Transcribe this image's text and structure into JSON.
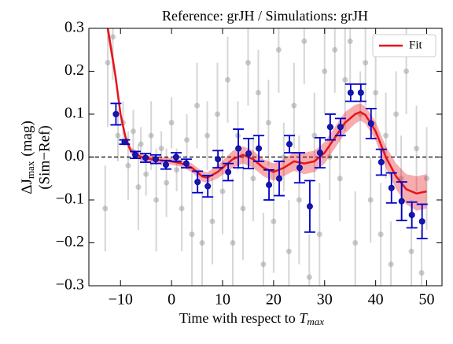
{
  "chart_data": {
    "type": "scatter",
    "title": "Reference: grJH / Simulations: grJH",
    "xlabel": {
      "text": "Time with respect to",
      "symbol": "T",
      "sub": "max"
    },
    "ylabel": {
      "symbol": "ΔJ",
      "sub": "max",
      "unit": "(mag)",
      "line2": "(Sim−Ref)"
    },
    "xlim": [
      -16.2,
      53
    ],
    "ylim": [
      -0.3,
      0.3
    ],
    "xticks": [
      {
        "value": -10,
        "label": "−10"
      },
      0,
      10,
      20,
      30,
      40,
      50
    ],
    "yticks": [
      {
        "value": -0.3,
        "label": "−0.3"
      },
      {
        "value": -0.2,
        "label": "−0.2"
      },
      {
        "value": -0.1,
        "label": "−0.1"
      },
      {
        "value": 0,
        "label": "0.0"
      },
      0.1,
      0.2,
      0.3
    ],
    "hline": 0,
    "legend": "upper right",
    "background": {
      "color": "#999999",
      "x": [
        -13,
        -12.5,
        -11.5,
        -10.5,
        -9.5,
        -8.5,
        -7.5,
        -6.5,
        -6,
        -5,
        -4,
        -3,
        -2,
        -1,
        0,
        1,
        2,
        3,
        4,
        5,
        6,
        7,
        8,
        9,
        10,
        11,
        12,
        13,
        14,
        15,
        16,
        17,
        18,
        19,
        20,
        21,
        22,
        23,
        24,
        25,
        26,
        27,
        28,
        29,
        30,
        31,
        32,
        33,
        34,
        35,
        36,
        37,
        38,
        39,
        40,
        41,
        42,
        43,
        44,
        45,
        46,
        47,
        48,
        49,
        50
      ],
      "values": [
        -0.12,
        0.22,
        0.28,
        0.05,
        0.08,
        -0.02,
        0.06,
        -0.07,
        0.03,
        -0.04,
        0.05,
        -0.1,
        0.02,
        -0.06,
        0.08,
        -0.03,
        -0.12,
        0.04,
        -0.18,
        0.12,
        -0.2,
        0.05,
        -0.15,
        0.1,
        -0.08,
        0.18,
        -0.2,
        0.05,
        -0.12,
        0.22,
        -0.05,
        0.15,
        -0.25,
        0.08,
        -0.15,
        0.25,
        0.0,
        -0.22,
        0.12,
        -0.1,
        0.27,
        -0.28,
        0.05,
        -0.18,
        0.2,
        0.0,
        0.25,
        -0.05,
        0.18,
        0.27,
        -0.2,
        0.1,
        0.22,
        -0.1,
        0.15,
        -0.18,
        0.05,
        -0.25,
        0.1,
        -0.05,
        0.2,
        -0.22,
        0.02,
        -0.27,
        -0.05
      ],
      "errors": [
        0.1,
        0.15,
        0.1,
        0.06,
        0.05,
        0.08,
        0.05,
        0.1,
        0.04,
        0.05,
        0.08,
        0.12,
        0.04,
        0.08,
        0.06,
        0.05,
        0.1,
        0.06,
        0.15,
        0.1,
        0.12,
        0.08,
        0.1,
        0.12,
        0.1,
        0.1,
        0.15,
        0.08,
        0.12,
        0.1,
        0.1,
        0.1,
        0.12,
        0.1,
        0.12,
        0.1,
        0.08,
        0.12,
        0.1,
        0.15,
        0.1,
        0.1,
        0.1,
        0.12,
        0.1,
        0.1,
        0.1,
        0.1,
        0.12,
        0.1,
        0.12,
        0.1,
        0.1,
        0.1,
        0.1,
        0.12,
        0.1,
        0.1,
        0.1,
        0.1,
        0.1,
        0.12,
        0.1,
        0.1,
        0.12
      ]
    },
    "binned": {
      "color": "#0000cc",
      "x": [
        -10.9,
        -9.2,
        -7.1,
        -5.1,
        -3.1,
        -1.1,
        0.9,
        2.9,
        5.1,
        7.1,
        9.1,
        11.1,
        13.1,
        15.1,
        17.1,
        19.1,
        21.1,
        23.1,
        25.1,
        27.1,
        29.1,
        31.1,
        33.1,
        35.1,
        37.1,
        39.1,
        41.1,
        43.1,
        45.1,
        47.1,
        49.1
      ],
      "values": [
        0.1,
        0.035,
        0.005,
        -0.002,
        -0.005,
        -0.018,
        0.0,
        -0.015,
        -0.058,
        -0.068,
        -0.005,
        -0.035,
        0.02,
        0.008,
        0.02,
        -0.065,
        -0.05,
        0.03,
        -0.025,
        -0.115,
        0.01,
        0.07,
        0.07,
        0.15,
        0.15,
        0.078,
        -0.012,
        -0.072,
        -0.103,
        -0.135,
        -0.15
      ],
      "errors": [
        0.025,
        0.005,
        0.008,
        0.01,
        0.01,
        0.01,
        0.01,
        0.01,
        0.025,
        0.025,
        0.02,
        0.02,
        0.045,
        0.035,
        0.03,
        0.035,
        0.04,
        0.02,
        0.035,
        0.06,
        0.035,
        0.03,
        0.02,
        0.02,
        0.02,
        0.035,
        0.03,
        0.035,
        0.045,
        0.03,
        0.04
      ]
    },
    "series": [
      {
        "name": "Fit",
        "color": "#e8141a",
        "x": [
          -12.5,
          -11,
          -10,
          -9,
          -8,
          -6,
          -4,
          -2,
          0,
          2,
          4,
          6,
          7,
          9,
          12,
          14,
          16,
          18,
          20,
          22,
          24,
          26,
          28,
          30,
          32,
          34,
          36,
          37,
          38,
          40,
          42,
          44,
          46,
          48,
          50
        ],
        "values": [
          0.3,
          0.19,
          0.1,
          0.045,
          0.015,
          0.0,
          -0.005,
          -0.008,
          -0.01,
          -0.015,
          -0.025,
          -0.045,
          -0.048,
          -0.035,
          -0.005,
          0.005,
          -0.005,
          -0.025,
          -0.035,
          -0.025,
          -0.01,
          -0.015,
          -0.01,
          0.01,
          0.045,
          0.08,
          0.1,
          0.105,
          0.098,
          0.06,
          0.0,
          -0.045,
          -0.075,
          -0.085,
          -0.08
        ],
        "errors": [
          0.02,
          0.015,
          0.012,
          0.01,
          0.008,
          0.008,
          0.008,
          0.008,
          0.008,
          0.008,
          0.01,
          0.012,
          0.012,
          0.015,
          0.02,
          0.02,
          0.02,
          0.02,
          0.02,
          0.02,
          0.022,
          0.025,
          0.025,
          0.025,
          0.025,
          0.025,
          0.022,
          0.02,
          0.02,
          0.022,
          0.025,
          0.03,
          0.035,
          0.04,
          0.04
        ]
      }
    ]
  }
}
